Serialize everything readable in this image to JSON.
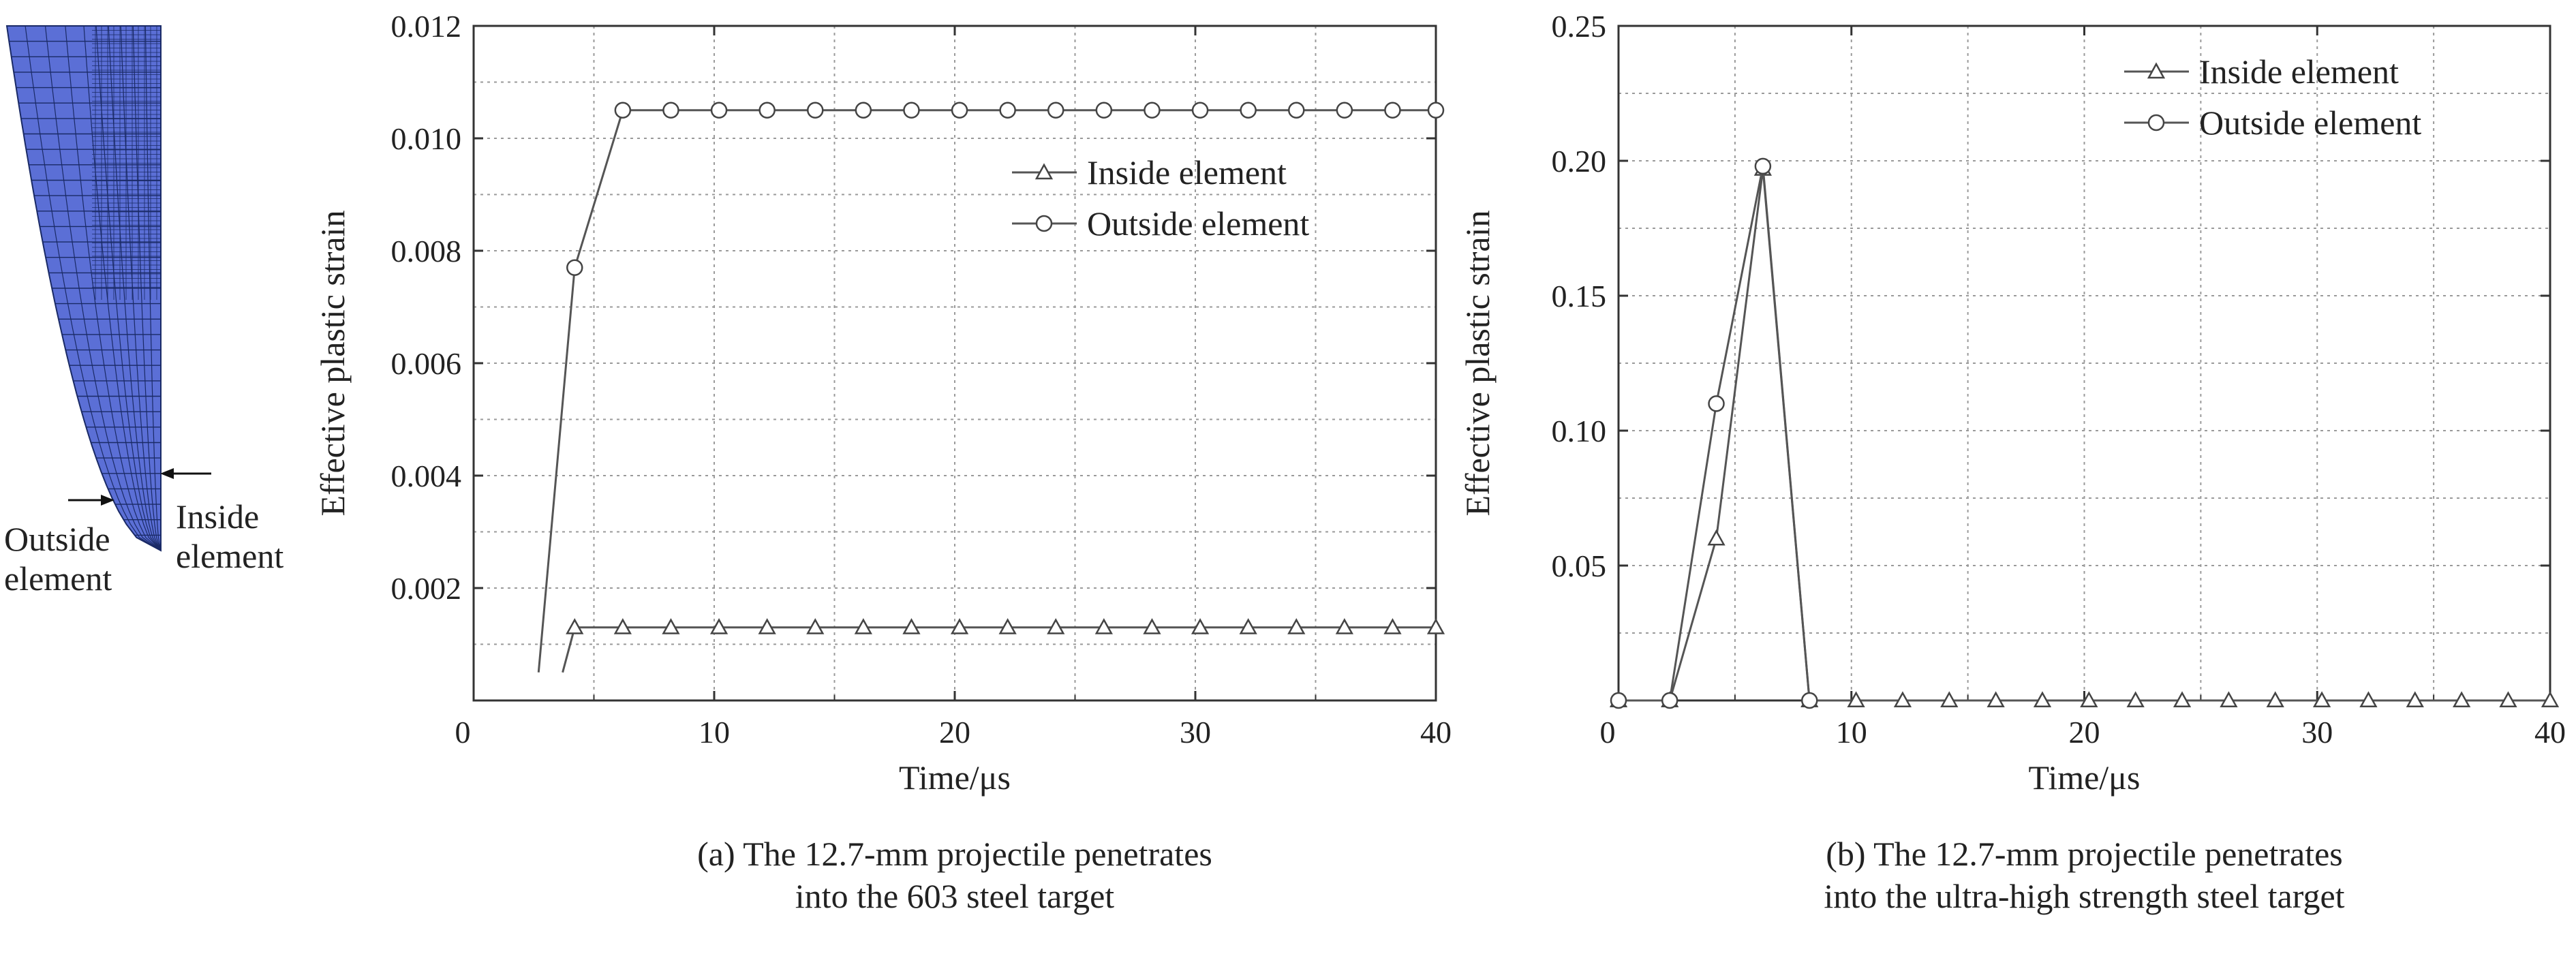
{
  "mesh": {
    "outside_label": [
      "Outside",
      "element"
    ],
    "inside_label": [
      "Inside",
      "element"
    ],
    "fill_color": "#5b6fd6",
    "line_color": "#1a2a66"
  },
  "chart_data": [
    {
      "type": "line",
      "title": "",
      "xlabel": "Time/μs",
      "ylabel": "Effective plastic strain",
      "xlim": [
        0,
        40
      ],
      "ylim": [
        0,
        0.012
      ],
      "xticks": [
        "0",
        "10",
        "20",
        "30",
        "40"
      ],
      "yticks": [
        "0.002",
        "0.004",
        "0.006",
        "0.008",
        "0.010",
        "0.012"
      ],
      "grid": true,
      "legend_position": "center-right",
      "series": [
        {
          "name": "Inside element",
          "marker": "triangle",
          "x": [
            3.7,
            4.2,
            6.2,
            8.2,
            10.2,
            12.2,
            14.2,
            16.2,
            18.2,
            20.2,
            22.2,
            24.2,
            26.2,
            28.2,
            30.2,
            32.2,
            34.2,
            36.2,
            38.2,
            40
          ],
          "y": [
            0.0005,
            0.0013,
            0.0013,
            0.0013,
            0.0013,
            0.0013,
            0.0013,
            0.0013,
            0.0013,
            0.0013,
            0.0013,
            0.0013,
            0.0013,
            0.0013,
            0.0013,
            0.0013,
            0.0013,
            0.0013,
            0.0013,
            0.0013
          ]
        },
        {
          "name": "Outside element",
          "marker": "circle",
          "x": [
            2.7,
            4.2,
            6.2,
            8.2,
            10.2,
            12.2,
            14.2,
            16.2,
            18.2,
            20.2,
            22.2,
            24.2,
            26.2,
            28.2,
            30.2,
            32.2,
            34.2,
            36.2,
            38.2,
            40
          ],
          "y": [
            0.0005,
            0.0077,
            0.0105,
            0.0105,
            0.0105,
            0.0105,
            0.0105,
            0.0105,
            0.0105,
            0.0105,
            0.0105,
            0.0105,
            0.0105,
            0.0105,
            0.0105,
            0.0105,
            0.0105,
            0.0105,
            0.0105,
            0.0105
          ]
        }
      ],
      "caption": [
        "(a) The 12.7-mm projectile penetrates",
        "into the 603 steel target"
      ]
    },
    {
      "type": "line",
      "title": "",
      "xlabel": "Time/μs",
      "ylabel": "Effective plastic strain",
      "xlim": [
        0,
        40
      ],
      "ylim": [
        0,
        0.25
      ],
      "xticks": [
        "0",
        "10",
        "20",
        "30",
        "40"
      ],
      "yticks": [
        "0.05",
        "0.10",
        "0.15",
        "0.20",
        "0.25"
      ],
      "grid": true,
      "legend_position": "top-right",
      "series": [
        {
          "name": "Inside element",
          "marker": "triangle",
          "x": [
            0,
            2.2,
            4.2,
            6.2,
            8.2,
            10.2,
            12.2,
            14.2,
            16.2,
            18.2,
            20.2,
            22.2,
            24.2,
            26.2,
            28.2,
            30.2,
            32.2,
            34.2,
            36.2,
            38.2,
            40
          ],
          "y": [
            0,
            0,
            0.06,
            0.197,
            0,
            0,
            0,
            0,
            0,
            0,
            0,
            0,
            0,
            0,
            0,
            0,
            0,
            0,
            0,
            0,
            0
          ]
        },
        {
          "name": "Outside element",
          "marker": "circle",
          "x": [
            0,
            2.2,
            4.2,
            6.2,
            8.2
          ],
          "y": [
            0,
            0,
            0.11,
            0.198,
            0
          ]
        }
      ],
      "caption": [
        "(b) The 12.7-mm projectile penetrates",
        "into the ultra-high strength steel target"
      ]
    }
  ]
}
